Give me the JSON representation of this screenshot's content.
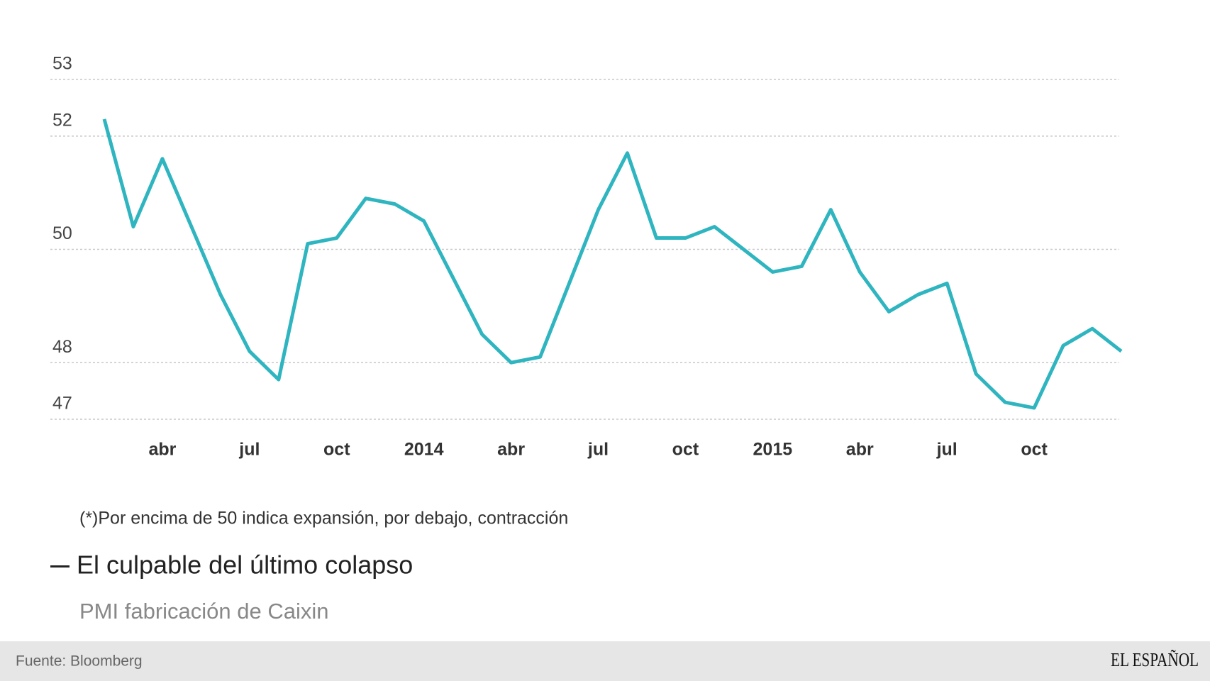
{
  "chart_data": {
    "type": "line",
    "title": "El culpable del último colapso",
    "subtitle": "PMI fabricación de Caixin",
    "note": "(*)Por encima de 50 indica expansión, por debajo, contracción",
    "source": "Fuente: Bloomberg",
    "categories": [
      null,
      null,
      "abr",
      null,
      null,
      "jul",
      null,
      null,
      "oct",
      null,
      null,
      "2014",
      null,
      null,
      "abr",
      null,
      null,
      "jul",
      null,
      null,
      "oct",
      null,
      null,
      "2015",
      null,
      null,
      "abr",
      null,
      null,
      "jul",
      null,
      null,
      "oct",
      null,
      null,
      null
    ],
    "values": [
      52.3,
      50.4,
      51.6,
      50.4,
      49.2,
      48.2,
      47.7,
      50.1,
      50.2,
      50.9,
      50.8,
      50.5,
      49.5,
      48.5,
      48.0,
      48.1,
      49.4,
      50.7,
      51.7,
      50.2,
      50.2,
      50.4,
      50.0,
      49.6,
      49.7,
      50.7,
      49.6,
      48.9,
      49.2,
      49.4,
      47.8,
      47.3,
      47.2,
      48.3,
      48.6,
      48.2
    ],
    "color": "#2fb5c0",
    "ylim": [
      47,
      53
    ],
    "yticks": [
      47,
      48,
      50,
      52,
      53
    ],
    "grid": true
  },
  "brand": "EL ESPAÑOL"
}
